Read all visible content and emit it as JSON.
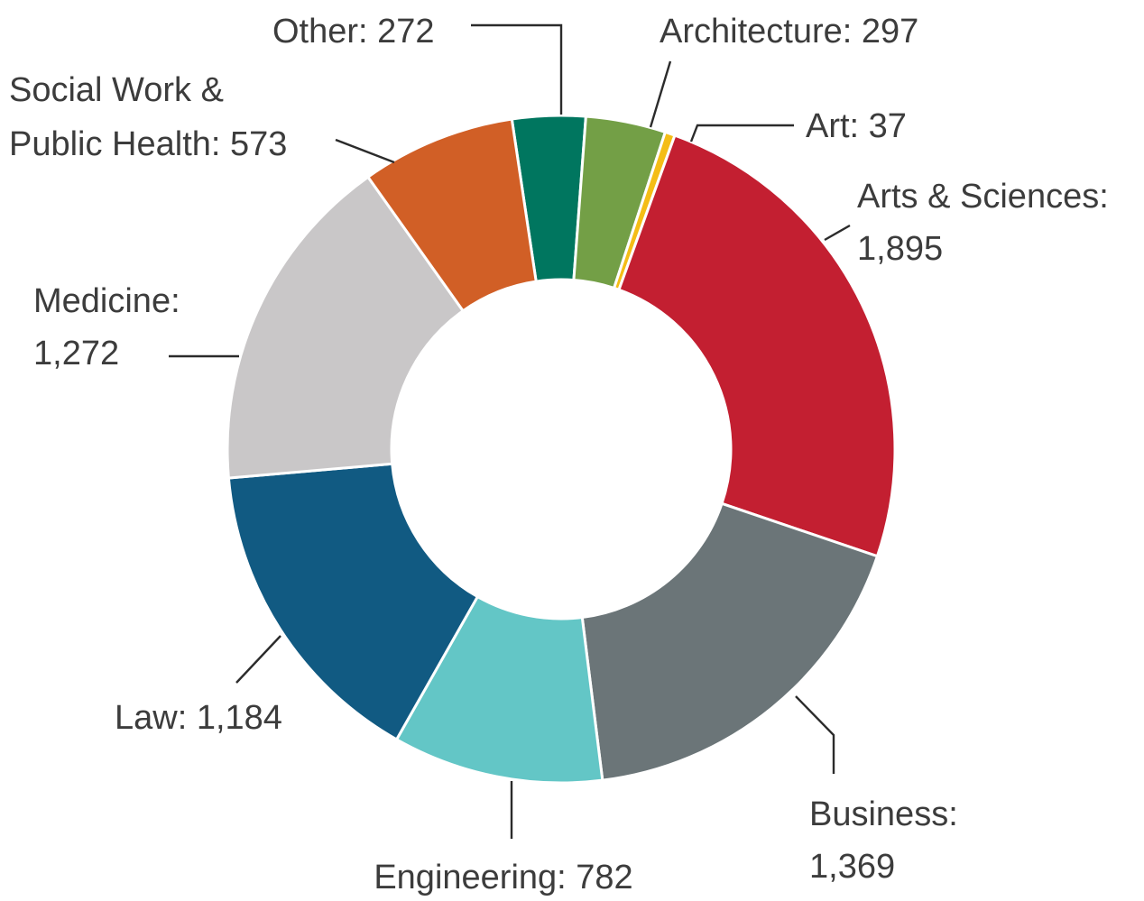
{
  "chart_data": {
    "type": "pie",
    "donut": true,
    "title": "",
    "start": "top",
    "direction": "clockwise",
    "slices": [
      {
        "label": "Other",
        "value": 272,
        "color": "#00765f",
        "lines": [
          "Other: 272"
        ]
      },
      {
        "label": "Architecture",
        "value": 297,
        "color": "#739f46",
        "lines": [
          "Architecture: 297"
        ]
      },
      {
        "label": "Art",
        "value": 37,
        "color": "#f4bd16",
        "lines": [
          "Art: 37"
        ]
      },
      {
        "label": "Arts & Sciences",
        "value": 1895,
        "color": "#c31f31",
        "lines": [
          "Arts & Sciences:",
          "1,895"
        ]
      },
      {
        "label": "Business",
        "value": 1369,
        "color": "#6b7578",
        "lines": [
          "Business:",
          "1,369"
        ]
      },
      {
        "label": "Engineering",
        "value": 782,
        "color": "#63c6c6",
        "lines": [
          "Engineering: 782"
        ]
      },
      {
        "label": "Law",
        "value": 1184,
        "color": "#115a82",
        "lines": [
          "Law: 1,184"
        ]
      },
      {
        "label": "Medicine",
        "value": 1272,
        "color": "#c9c7c8",
        "lines": [
          "Medicine:",
          "1,272"
        ]
      },
      {
        "label": "Social Work & Public Health",
        "value": 573,
        "color": "#d15f26",
        "lines": [
          "Social Work &",
          "Public Health: 573"
        ]
      }
    ]
  }
}
